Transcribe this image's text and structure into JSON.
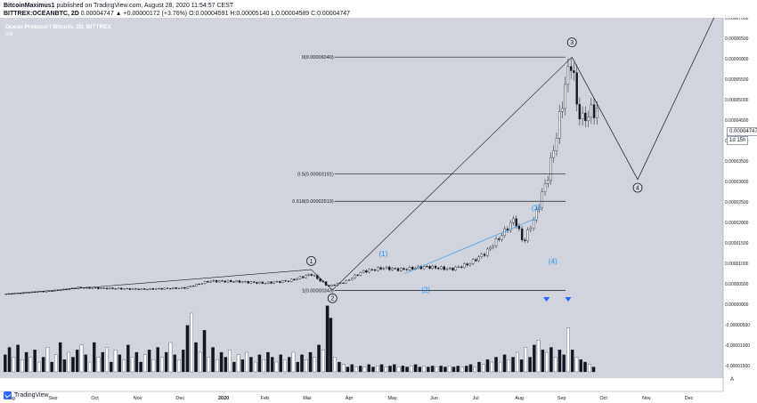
{
  "header": {
    "author": "BitcoinMaximus1",
    "published_line": " published on TradingView.com, August 28, 2020 11:54:57 CEST",
    "symbol": "BITTREX:OCEANBTC, 2D",
    "quote": " 0.00004747 ▲ +0.00000172 (+3.76%) O:0.00004591 H:0.00005140 L:0.00004589 C:0.00004747"
  },
  "legend": {
    "title": "Ocean Protocol / Bitcoin, 2D, BITTREX",
    "volume": "Vol"
  },
  "price_box": {
    "value": "0.00004747",
    "timer": "1d 15h"
  },
  "footer": {
    "brand": "TradingView",
    "auto_label": "A"
  },
  "colors": {
    "background": "#d1d4dc",
    "fib_line": "#131722",
    "wave_line": "#131722",
    "wave_blue": "#2196f3",
    "volume_down": "#131722",
    "volume_up": "#ffffff",
    "marker": "#2962ff"
  },
  "icons": {
    "logo": "tradingview-logo-icon",
    "marker": "triangle-down-icon"
  },
  "chart_data": {
    "type": "candlestick",
    "x_axis": {
      "labels": [
        "Aug",
        "Sep",
        "Oct",
        "Nov",
        "Dec",
        "2020",
        "Feb",
        "Mar",
        "Apr",
        "May",
        "Jun",
        "Jul",
        "Aug",
        "Sep",
        "Oct",
        "Nov",
        "Dec"
      ],
      "bold_labels": [
        "2020"
      ]
    },
    "y_axis": {
      "min": -1.8e-05,
      "max": 7e-05,
      "ticks": [
        "0.00007000",
        "0.00006500",
        "0.00006000",
        "0.00005500",
        "0.00005000",
        "0.00004500",
        "0.00004000",
        "0.00003500",
        "0.00003000",
        "0.00002500",
        "0.00002000",
        "0.00001500",
        "0.00001000",
        "0.00000500",
        "0.00000000",
        "-0.00000500",
        "-0.00001000",
        "-0.00001500"
      ],
      "tick_values": [
        7e-05,
        6.5e-05,
        6e-05,
        5.5e-05,
        5e-05,
        4.5e-05,
        4e-05,
        3.5e-05,
        3e-05,
        2.5e-05,
        2e-05,
        1.5e-05,
        1e-05,
        5e-06,
        0,
        -5e-06,
        -1e-05,
        -1.5e-05
      ]
    },
    "fib_levels": [
      {
        "label": "0(0.00006040)",
        "value": 6.04e-05
      },
      {
        "label": "0.5(0.00003191)",
        "value": 3.191e-05
      },
      {
        "label": "0.618(0.00002519)",
        "value": 2.519e-05
      },
      {
        "label": "1(0.00000343)",
        "value": 3.43e-06
      }
    ],
    "price_series": [
      [
        0.1,
        2.5e-06
      ],
      [
        0.5,
        2.8e-06
      ],
      [
        0.9,
        3.1e-06
      ],
      [
        1.3,
        3.4e-06
      ],
      [
        1.8,
        4.1e-06
      ],
      [
        2.5,
        3.9e-06
      ],
      [
        3.3,
        3.7e-06
      ],
      [
        4.3,
        4e-06
      ],
      [
        4.9,
        5.7e-06
      ],
      [
        5.5,
        5.6e-06
      ],
      [
        6.2,
        5.2e-06
      ],
      [
        6.8,
        5.8e-06
      ],
      [
        7.3,
        7.4e-06
      ],
      [
        7.7,
        4.4e-06
      ],
      [
        8.1,
        5.5e-06
      ],
      [
        8.5,
        8e-06
      ],
      [
        9.0,
        8.9e-06
      ],
      [
        9.4,
        8.5e-06
      ],
      [
        10.0,
        9.2e-06
      ],
      [
        10.6,
        8.6e-06
      ],
      [
        11.0,
        9.8e-06
      ],
      [
        11.4,
        1.25e-05
      ],
      [
        11.8,
        1.7e-05
      ],
      [
        12.1,
        2.1e-05
      ],
      [
        12.3,
        1.5e-05
      ],
      [
        12.6,
        2.2e-05
      ],
      [
        12.9,
        3.2e-05
      ],
      [
        13.1,
        4.2e-05
      ],
      [
        13.3,
        5.4e-05
      ],
      [
        13.45,
        6.04e-05
      ],
      [
        13.55,
        4.9e-05
      ],
      [
        13.7,
        4.5e-05
      ],
      [
        13.9,
        4.7e-05
      ],
      [
        14.05,
        4.747e-05
      ]
    ],
    "wave_labels": [
      {
        "label": "1",
        "style": "circled",
        "x": 7.3,
        "y": 1.06e-05
      },
      {
        "label": "2",
        "style": "circled",
        "x": 7.8,
        "y": 1.5e-06
      },
      {
        "label": "(1)",
        "style": "blue",
        "x": 9.0,
        "y": 1.23e-05
      },
      {
        "label": "(2)",
        "style": "blue",
        "x": 10.0,
        "y": 3.5e-06
      },
      {
        "label": "(3)",
        "style": "blue",
        "x": 12.6,
        "y": 2.35e-05
      },
      {
        "label": "(4)",
        "style": "blue",
        "x": 13.0,
        "y": 1.05e-05
      },
      {
        "label": "3",
        "style": "circled",
        "x": 13.45,
        "y": 6.4e-05
      },
      {
        "label": "4",
        "style": "circled",
        "x": 15.0,
        "y": 2.85e-05
      }
    ],
    "projection": [
      [
        13.45,
        6.04e-05
      ],
      [
        15.0,
        3.05e-05
      ],
      [
        16.8,
        7e-05
      ]
    ],
    "trend_lines": [
      [
        [
          0.1,
          2.5e-06
        ],
        [
          7.3,
          8.5e-06
        ],
        [
          7.8,
          3.5e-06
        ]
      ],
      [
        [
          7.8,
          3.5e-06
        ],
        [
          13.45,
          6.04e-05
        ]
      ]
    ],
    "trend_lines_blue": [
      [
        [
          9.5,
          7.5e-06
        ],
        [
          12.6,
          2.1e-05
        ]
      ]
    ],
    "volume": {
      "bars": [
        [
          0.08,
          0.35,
          "d"
        ],
        [
          0.18,
          0.5,
          "d"
        ],
        [
          0.28,
          0.3,
          "u"
        ],
        [
          0.38,
          0.55,
          "d"
        ],
        [
          0.48,
          0.25,
          "u"
        ],
        [
          0.58,
          0.4,
          "d"
        ],
        [
          0.68,
          0.3,
          "u"
        ],
        [
          0.78,
          0.45,
          "d"
        ],
        [
          0.88,
          0.2,
          "u"
        ],
        [
          0.98,
          0.3,
          "d"
        ],
        [
          1.08,
          0.5,
          "u"
        ],
        [
          1.18,
          0.2,
          "d"
        ],
        [
          1.28,
          0.35,
          "u"
        ],
        [
          1.38,
          0.6,
          "d"
        ],
        [
          1.48,
          0.25,
          "d"
        ],
        [
          1.58,
          0.4,
          "u"
        ],
        [
          1.68,
          0.3,
          "d"
        ],
        [
          1.78,
          0.45,
          "d"
        ],
        [
          1.88,
          0.55,
          "u"
        ],
        [
          1.98,
          0.35,
          "d"
        ],
        [
          2.08,
          0.2,
          "u"
        ],
        [
          2.18,
          0.6,
          "d"
        ],
        [
          2.28,
          0.3,
          "u"
        ],
        [
          2.38,
          0.4,
          "d"
        ],
        [
          2.48,
          0.5,
          "u"
        ],
        [
          2.58,
          0.2,
          "d"
        ],
        [
          2.68,
          0.45,
          "u"
        ],
        [
          2.78,
          0.35,
          "d"
        ],
        [
          2.88,
          0.25,
          "u"
        ],
        [
          2.98,
          0.55,
          "d"
        ],
        [
          3.08,
          0.3,
          "u"
        ],
        [
          3.18,
          0.4,
          "d"
        ],
        [
          3.28,
          0.2,
          "d"
        ],
        [
          3.38,
          0.35,
          "u"
        ],
        [
          3.48,
          0.45,
          "d"
        ],
        [
          3.58,
          0.25,
          "u"
        ],
        [
          3.68,
          0.5,
          "d"
        ],
        [
          3.78,
          0.3,
          "u"
        ],
        [
          3.88,
          0.4,
          "d"
        ],
        [
          3.98,
          0.6,
          "u"
        ],
        [
          4.08,
          0.35,
          "d"
        ],
        [
          4.18,
          0.25,
          "u"
        ],
        [
          4.28,
          0.45,
          "d"
        ],
        [
          4.38,
          0.95,
          "d"
        ],
        [
          4.48,
          1.2,
          "u"
        ],
        [
          4.58,
          0.6,
          "d"
        ],
        [
          4.68,
          0.4,
          "u"
        ],
        [
          4.78,
          0.85,
          "d"
        ],
        [
          4.88,
          0.3,
          "u"
        ],
        [
          4.98,
          0.5,
          "d"
        ],
        [
          5.08,
          0.25,
          "u"
        ],
        [
          5.18,
          0.4,
          "d"
        ],
        [
          5.28,
          0.3,
          "d"
        ],
        [
          5.38,
          0.45,
          "u"
        ],
        [
          5.48,
          0.2,
          "d"
        ],
        [
          5.58,
          0.35,
          "u"
        ],
        [
          5.68,
          0.25,
          "d"
        ],
        [
          5.78,
          0.4,
          "u"
        ],
        [
          5.88,
          0.3,
          "d"
        ],
        [
          5.98,
          0.2,
          "u"
        ],
        [
          6.08,
          0.35,
          "d"
        ],
        [
          6.18,
          0.25,
          "u"
        ],
        [
          6.28,
          0.4,
          "d"
        ],
        [
          6.38,
          0.3,
          "d"
        ],
        [
          6.48,
          0.2,
          "u"
        ],
        [
          6.58,
          0.35,
          "d"
        ],
        [
          6.68,
          0.25,
          "u"
        ],
        [
          6.78,
          0.3,
          "d"
        ],
        [
          6.88,
          0.4,
          "u"
        ],
        [
          6.98,
          0.2,
          "d"
        ],
        [
          7.08,
          0.35,
          "d"
        ],
        [
          7.18,
          0.25,
          "u"
        ],
        [
          7.28,
          0.4,
          "d"
        ],
        [
          7.38,
          0.3,
          "u"
        ],
        [
          7.48,
          0.55,
          "d"
        ],
        [
          7.58,
          0.45,
          "u"
        ],
        [
          7.68,
          1.35,
          "d"
        ],
        [
          7.76,
          1.1,
          "d"
        ],
        [
          7.86,
          0.3,
          "u"
        ],
        [
          7.96,
          0.2,
          "d"
        ],
        [
          8.06,
          0.15,
          "u"
        ],
        [
          8.16,
          0.1,
          "d"
        ],
        [
          8.26,
          0.15,
          "d"
        ],
        [
          8.36,
          0.1,
          "u"
        ],
        [
          8.46,
          0.12,
          "d"
        ],
        [
          8.56,
          0.1,
          "u"
        ],
        [
          8.66,
          0.15,
          "d"
        ],
        [
          8.76,
          0.1,
          "d"
        ],
        [
          8.86,
          0.12,
          "u"
        ],
        [
          8.96,
          0.15,
          "d"
        ],
        [
          9.06,
          0.1,
          "u"
        ],
        [
          9.16,
          0.12,
          "d"
        ],
        [
          9.26,
          0.15,
          "d"
        ],
        [
          9.36,
          0.1,
          "u"
        ],
        [
          9.46,
          0.12,
          "d"
        ],
        [
          9.56,
          0.1,
          "d"
        ],
        [
          9.66,
          0.12,
          "u"
        ],
        [
          9.76,
          0.15,
          "d"
        ],
        [
          9.86,
          0.1,
          "d"
        ],
        [
          9.96,
          0.12,
          "u"
        ],
        [
          10.06,
          0.1,
          "d"
        ],
        [
          10.16,
          0.12,
          "d"
        ],
        [
          10.26,
          0.1,
          "u"
        ],
        [
          10.36,
          0.12,
          "d"
        ],
        [
          10.46,
          0.1,
          "d"
        ],
        [
          10.56,
          0.12,
          "u"
        ],
        [
          10.66,
          0.1,
          "d"
        ],
        [
          10.76,
          0.12,
          "d"
        ],
        [
          10.86,
          0.1,
          "u"
        ],
        [
          10.96,
          0.12,
          "d"
        ],
        [
          11.06,
          0.15,
          "d"
        ],
        [
          11.16,
          0.1,
          "u"
        ],
        [
          11.26,
          0.2,
          "d"
        ],
        [
          11.36,
          0.15,
          "u"
        ],
        [
          11.46,
          0.25,
          "d"
        ],
        [
          11.56,
          0.2,
          "u"
        ],
        [
          11.66,
          0.3,
          "d"
        ],
        [
          11.76,
          0.2,
          "u"
        ],
        [
          11.86,
          0.35,
          "d"
        ],
        [
          11.96,
          0.25,
          "u"
        ],
        [
          12.06,
          0.3,
          "d"
        ],
        [
          12.16,
          0.4,
          "u"
        ],
        [
          12.26,
          0.25,
          "d"
        ],
        [
          12.36,
          0.5,
          "u"
        ],
        [
          12.46,
          0.3,
          "d"
        ],
        [
          12.56,
          0.55,
          "d"
        ],
        [
          12.66,
          0.65,
          "u"
        ],
        [
          12.76,
          0.45,
          "d"
        ],
        [
          12.86,
          0.4,
          "u"
        ],
        [
          12.96,
          0.5,
          "d"
        ],
        [
          13.06,
          0.3,
          "u"
        ],
        [
          13.16,
          0.45,
          "d"
        ],
        [
          13.26,
          0.35,
          "d"
        ],
        [
          13.36,
          0.9,
          "u"
        ],
        [
          13.46,
          0.45,
          "d"
        ],
        [
          13.56,
          0.3,
          "u"
        ],
        [
          13.66,
          0.25,
          "d"
        ],
        [
          13.76,
          0.2,
          "d"
        ],
        [
          13.86,
          0.15,
          "u"
        ],
        [
          13.96,
          0.1,
          "d"
        ]
      ],
      "markers": [
        12.85,
        13.36
      ]
    }
  }
}
